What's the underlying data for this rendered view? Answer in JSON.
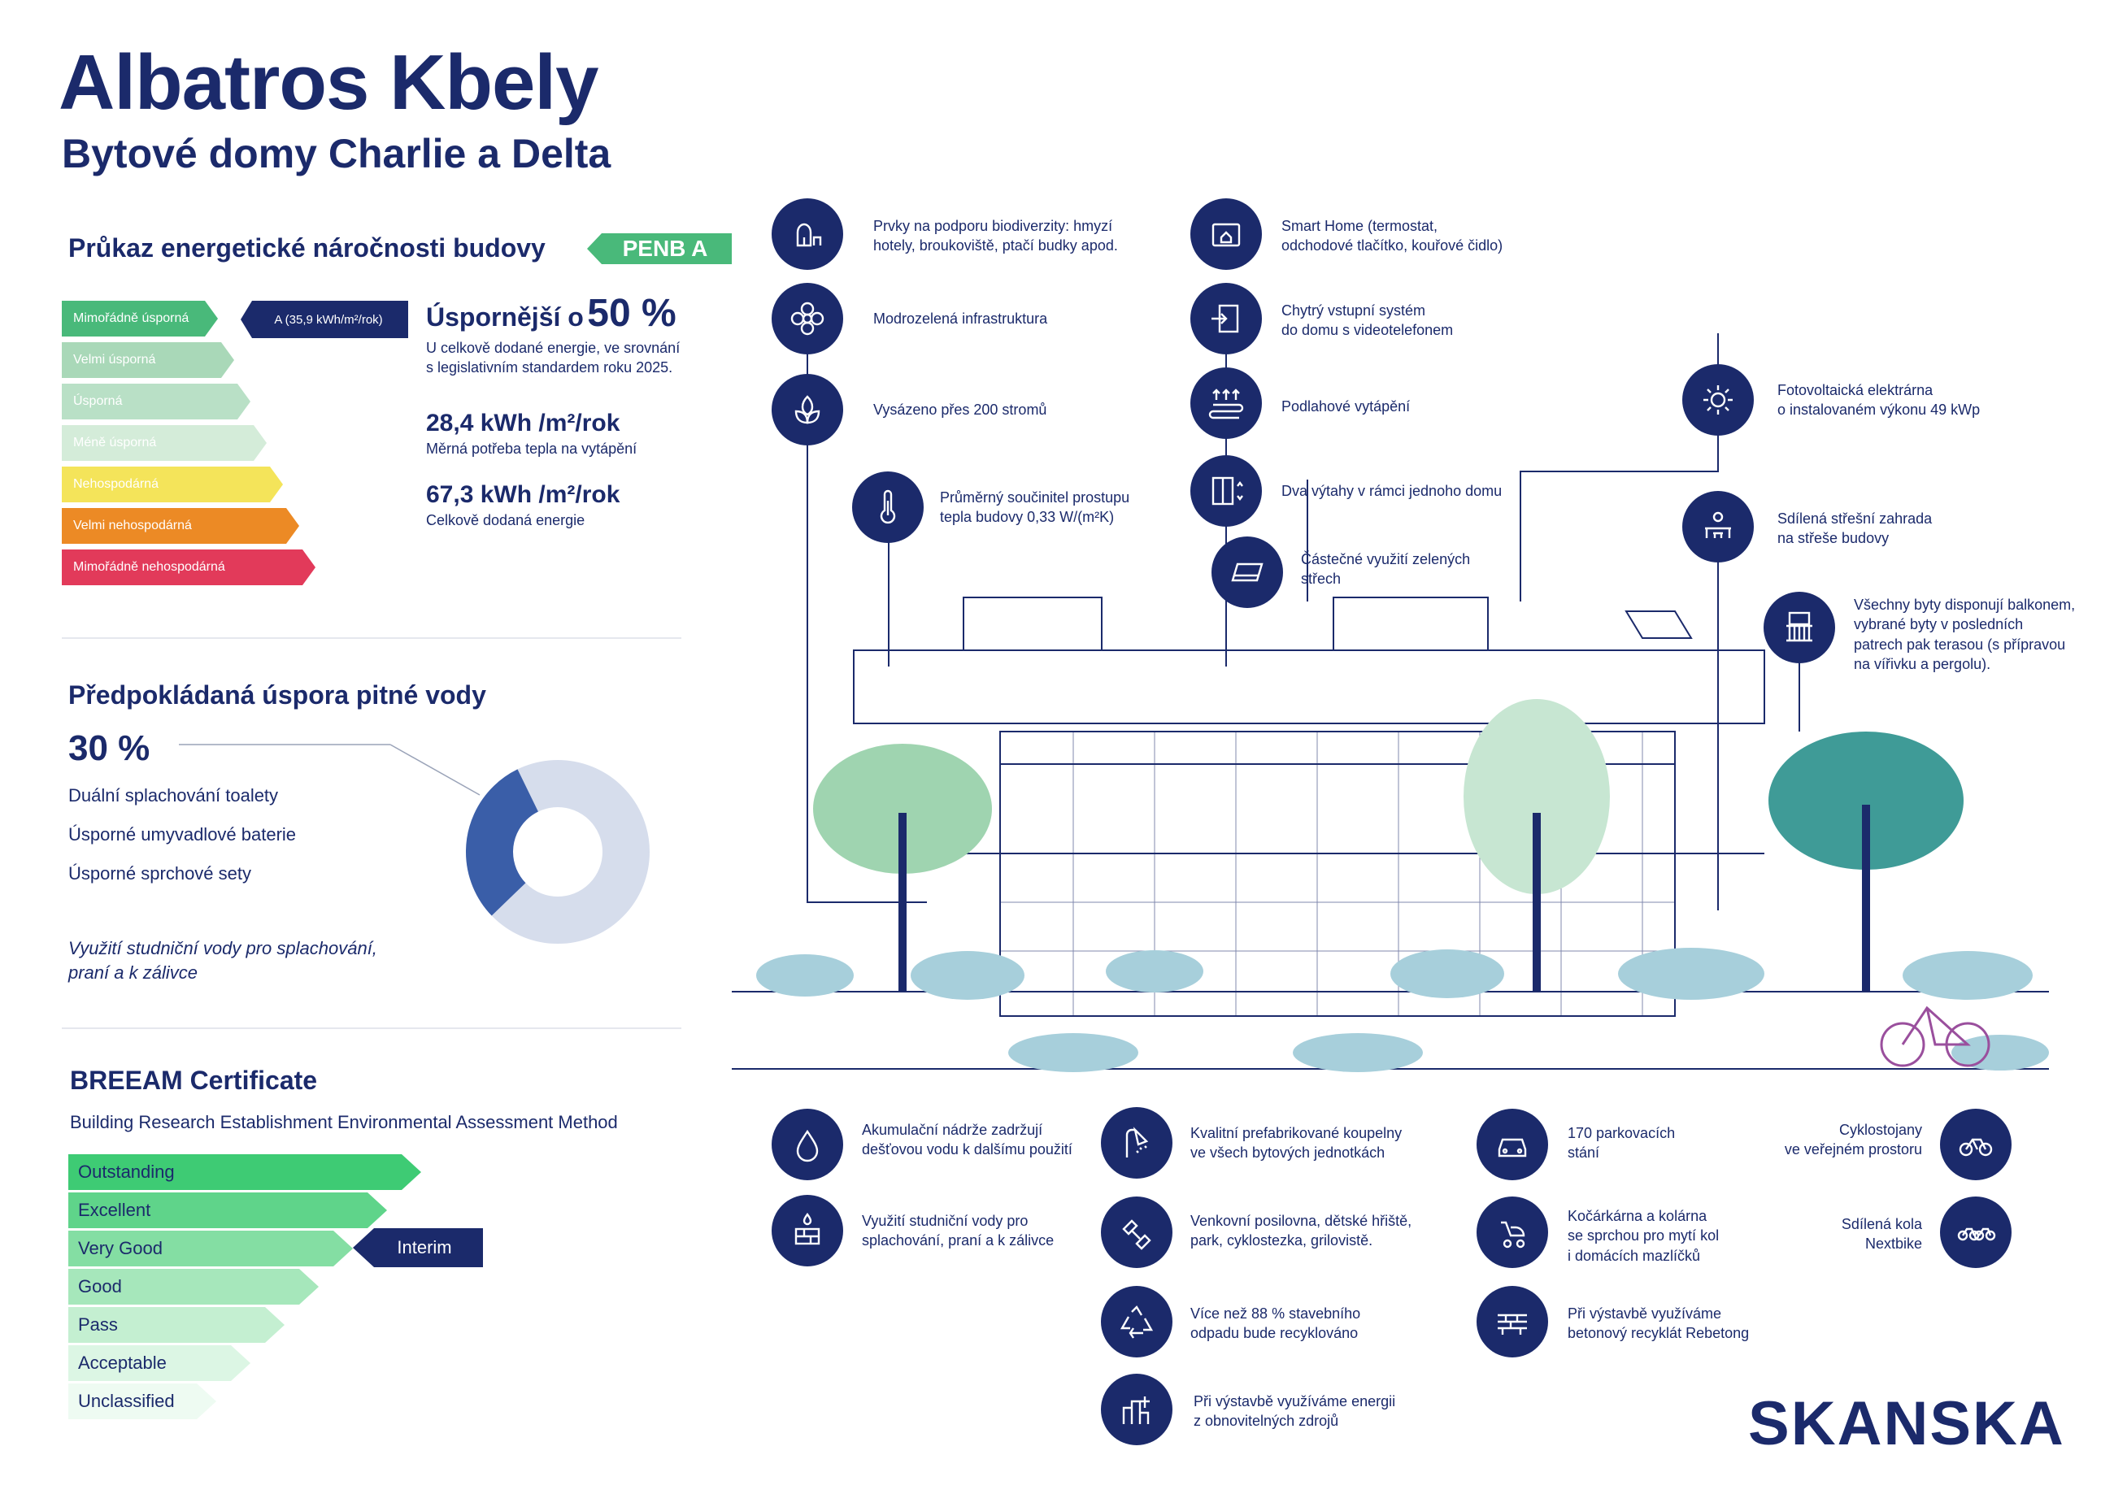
{
  "header": {
    "title": "Albatros Kbely",
    "subtitle": "Bytové domy Charlie a Delta"
  },
  "penb": {
    "heading": "Průkaz energetické náročnosti budovy",
    "badge": "PENB A",
    "classes": [
      {
        "label": "Mimořádně úsporná",
        "color": "#49b97a"
      },
      {
        "label": "Velmi úsporná",
        "color": "#a9d8b8"
      },
      {
        "label": "Úsporná",
        "color": "#b9e0c6"
      },
      {
        "label": "Méně úsporná",
        "color": "#d4ecd9"
      },
      {
        "label": "Nehospodárná",
        "color": "#f4e45a"
      },
      {
        "label": "Velmi nehospodárná",
        "color": "#ec8a25"
      },
      {
        "label": "Mimořádně nehospodárná",
        "color": "#e23a5a"
      }
    ],
    "rating_label": "A (35,9 kWh/m²/rok)",
    "saving_prefix": "Úspornější o",
    "saving_value": "50 %",
    "saving_note_1": "U celkově dodané energie, ve srovnání",
    "saving_note_2": "s legislativním standardem roku 2025.",
    "heat_value": "28,4 kWh /m²/rok",
    "heat_label": "Měrná potřeba tepla na vytápění",
    "total_value": "67,3 kWh /m²/rok",
    "total_label": "Celkově dodaná energie"
  },
  "water": {
    "heading": "Předpokládaná úspora pitné vody",
    "percent": "30 %",
    "share": 0.3,
    "items": [
      "Duální splachování toalety",
      "Úsporné umyvadlové baterie",
      "Úsporné sprchové sety"
    ],
    "note_1": "Využití studniční vody pro splachování,",
    "note_2": "praní a k zálivce",
    "colors": {
      "saved": "#3a5ea8",
      "rest": "#d6ddec"
    }
  },
  "breeam": {
    "heading": "BREEAM Certificate",
    "subheading": "Building Research Establishment Environmental Assessment Method",
    "levels": [
      {
        "label": "Outstanding",
        "color": "#3ecb74"
      },
      {
        "label": "Excellent",
        "color": "#5fd48a"
      },
      {
        "label": "Very Good",
        "color": "#84dea3"
      },
      {
        "label": "Good",
        "color": "#a6e7bb"
      },
      {
        "label": "Pass",
        "color": "#c4efd1"
      },
      {
        "label": "Acceptable",
        "color": "#dcf6e4"
      },
      {
        "label": "Unclassified",
        "color": "#eefbf2"
      }
    ],
    "interim": "Interim"
  },
  "features_top": [
    {
      "icon": "biodiversity-icon",
      "line1": "Prvky na podporu biodiverzity: hmyzí",
      "line2": "hotely, broukoviště, ptačí budky apod."
    },
    {
      "icon": "flower-icon",
      "line1": "Modrozelená infrastruktura",
      "line2": ""
    },
    {
      "icon": "tree-icon",
      "line1": "Vysázeno přes 200 stromů",
      "line2": ""
    },
    {
      "icon": "thermometer-icon",
      "line1": "Průměrný součinitel prostupu",
      "line2": "tepla budovy 0,33 W/(m²K)"
    },
    {
      "icon": "smart-home-icon",
      "line1": "Smart Home (termostat,",
      "line2": "odchodové tlačítko, kouřové čidlo)"
    },
    {
      "icon": "door-entry-icon",
      "line1": "Chytrý vstupní systém",
      "line2": "do domu s videotelefonem"
    },
    {
      "icon": "floor-heating-icon",
      "line1": "Podlahové vytápění",
      "line2": ""
    },
    {
      "icon": "elevator-icon",
      "line1": "Dva výtahy v rámci jednoho domu",
      "line2": ""
    },
    {
      "icon": "green-roof-icon",
      "line1": "Částečné využití zelených",
      "line2": "střech"
    },
    {
      "icon": "solar-icon",
      "line1": "Fotovoltaická elektrárna",
      "line2": "o instalovaném výkonu 49 kWp"
    },
    {
      "icon": "roof-garden-icon",
      "line1": "Sdílená střešní zahrada",
      "line2": "na střeše budovy"
    },
    {
      "icon": "balcony-icon",
      "line1": "Všechny byty disponují balkonem,",
      "line2": "vybrané byty v posledních",
      "line3": "patrech pak terasou (s přípravou",
      "line4": "na vířivku a pergolu)."
    }
  ],
  "features_bottom": [
    {
      "icon": "water-drop-icon",
      "line1": "Akumulační nádrže zadržují",
      "line2": "dešťovou vodu k dalšímu použití"
    },
    {
      "icon": "well-icon",
      "line1": "Využití studniční vody pro",
      "line2": "splachování, praní a k zálivce"
    },
    {
      "icon": "shower-icon",
      "line1": "Kvalitní prefabrikované koupelny",
      "line2": "ve všech bytových jednotkách"
    },
    {
      "icon": "dumbbell-icon",
      "line1": "Venkovní posilovna, dětské hřiště,",
      "line2": "park, cyklostezka, grilovistě."
    },
    {
      "icon": "recycle-icon",
      "line1": "Více než 88 % stavebního",
      "line2": "odpadu bude recyklováno"
    },
    {
      "icon": "renewable-energy-icon",
      "line1": "Při výstavbě využíváme energii",
      "line2": "z obnovitelných zdrojů"
    },
    {
      "icon": "car-icon",
      "line1": "170 parkovacích",
      "line2": "stání"
    },
    {
      "icon": "stroller-icon",
      "line1": "Kočárkárna a kolárna",
      "line2": "se sprchou pro mytí kol",
      "line3": "i domácích mazlíčků"
    },
    {
      "icon": "concrete-icon",
      "line1": "Při výstavbě využíváme",
      "line2": "betonový recyklát Rebetong"
    },
    {
      "icon": "bike-path-icon",
      "line1": "Cyklostojany",
      "line2": "ve veřejném prostoru"
    },
    {
      "icon": "shared-bike-icon",
      "line1": "Sdílená kola",
      "line2": "Nextbike"
    }
  ],
  "brand": {
    "logo": "SKANSKA",
    "navy": "#1b2a6b"
  }
}
